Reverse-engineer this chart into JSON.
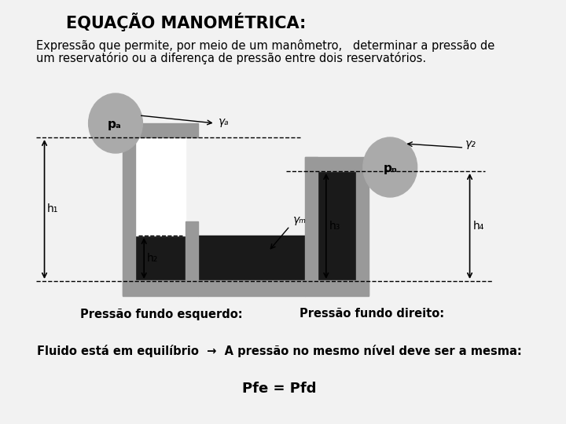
{
  "title": "EQUAÇÃO MANOMÉTRICA:",
  "subtitle_line1": "Expressão que permite, por meio de um manômetro,   determinar a pressão de",
  "subtitle_line2": "um reservatório ou a diferença de pressão entre dois reservatórios.",
  "label_pA": "pₐ",
  "label_pB": "pₙ",
  "label_gammaA": "γₐ",
  "label_gammaB": "γ₂",
  "label_gammaM": "γₘ",
  "label_h1": "h₁",
  "label_h2": "h₂",
  "label_h3": "h₃",
  "label_h4": "h₄",
  "label_left": "Pressão fundo esquerdo:",
  "label_right": "Pressão fundo direito:",
  "label_equilibrio": "Fluido está em equilíbrio  →  A pressão no mesmo nível deve ser a mesma:",
  "label_pfe": "Pfe = Pfd",
  "bg_color": "#f2f2f2",
  "border_color": "#666666",
  "circle_color": "#aaaaaa",
  "wall_color": "#999999",
  "fluid_dark": "#1a1a1a",
  "fluid_white": "#ffffff",
  "title_fontsize": 15,
  "text_fontsize": 10.5,
  "diagram_fontsize": 10
}
